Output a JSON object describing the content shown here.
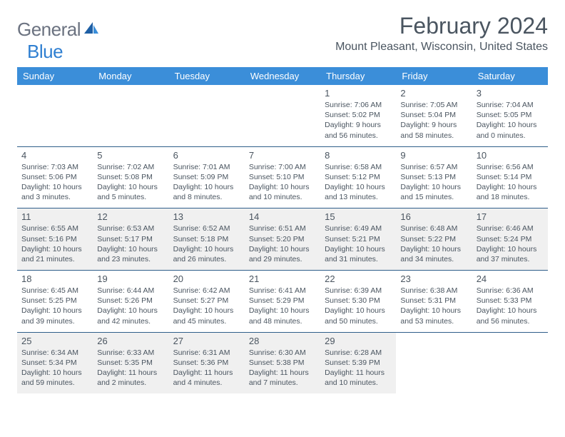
{
  "brand": {
    "general": "General",
    "blue": "Blue"
  },
  "title": "February 2024",
  "location": "Mount Pleasant, Wisconsin, United States",
  "colors": {
    "header_bg": "#3b8ed9",
    "header_text": "#ffffff",
    "border": "#2f5e8a",
    "text": "#4a5560",
    "shaded_bg": "#f0f0f0",
    "logo_gray": "#6b7280",
    "logo_blue": "#2f7fd1"
  },
  "day_headers": [
    "Sunday",
    "Monday",
    "Tuesday",
    "Wednesday",
    "Thursday",
    "Friday",
    "Saturday"
  ],
  "weeks": [
    {
      "shaded": false,
      "days": [
        null,
        null,
        null,
        null,
        {
          "n": "1",
          "sunrise": "7:06 AM",
          "sunset": "5:02 PM",
          "daylight": "9 hours and 56 minutes."
        },
        {
          "n": "2",
          "sunrise": "7:05 AM",
          "sunset": "5:04 PM",
          "daylight": "9 hours and 58 minutes."
        },
        {
          "n": "3",
          "sunrise": "7:04 AM",
          "sunset": "5:05 PM",
          "daylight": "10 hours and 0 minutes."
        }
      ]
    },
    {
      "shaded": false,
      "days": [
        {
          "n": "4",
          "sunrise": "7:03 AM",
          "sunset": "5:06 PM",
          "daylight": "10 hours and 3 minutes."
        },
        {
          "n": "5",
          "sunrise": "7:02 AM",
          "sunset": "5:08 PM",
          "daylight": "10 hours and 5 minutes."
        },
        {
          "n": "6",
          "sunrise": "7:01 AM",
          "sunset": "5:09 PM",
          "daylight": "10 hours and 8 minutes."
        },
        {
          "n": "7",
          "sunrise": "7:00 AM",
          "sunset": "5:10 PM",
          "daylight": "10 hours and 10 minutes."
        },
        {
          "n": "8",
          "sunrise": "6:58 AM",
          "sunset": "5:12 PM",
          "daylight": "10 hours and 13 minutes."
        },
        {
          "n": "9",
          "sunrise": "6:57 AM",
          "sunset": "5:13 PM",
          "daylight": "10 hours and 15 minutes."
        },
        {
          "n": "10",
          "sunrise": "6:56 AM",
          "sunset": "5:14 PM",
          "daylight": "10 hours and 18 minutes."
        }
      ]
    },
    {
      "shaded": true,
      "days": [
        {
          "n": "11",
          "sunrise": "6:55 AM",
          "sunset": "5:16 PM",
          "daylight": "10 hours and 21 minutes."
        },
        {
          "n": "12",
          "sunrise": "6:53 AM",
          "sunset": "5:17 PM",
          "daylight": "10 hours and 23 minutes."
        },
        {
          "n": "13",
          "sunrise": "6:52 AM",
          "sunset": "5:18 PM",
          "daylight": "10 hours and 26 minutes."
        },
        {
          "n": "14",
          "sunrise": "6:51 AM",
          "sunset": "5:20 PM",
          "daylight": "10 hours and 29 minutes."
        },
        {
          "n": "15",
          "sunrise": "6:49 AM",
          "sunset": "5:21 PM",
          "daylight": "10 hours and 31 minutes."
        },
        {
          "n": "16",
          "sunrise": "6:48 AM",
          "sunset": "5:22 PM",
          "daylight": "10 hours and 34 minutes."
        },
        {
          "n": "17",
          "sunrise": "6:46 AM",
          "sunset": "5:24 PM",
          "daylight": "10 hours and 37 minutes."
        }
      ]
    },
    {
      "shaded": false,
      "days": [
        {
          "n": "18",
          "sunrise": "6:45 AM",
          "sunset": "5:25 PM",
          "daylight": "10 hours and 39 minutes."
        },
        {
          "n": "19",
          "sunrise": "6:44 AM",
          "sunset": "5:26 PM",
          "daylight": "10 hours and 42 minutes."
        },
        {
          "n": "20",
          "sunrise": "6:42 AM",
          "sunset": "5:27 PM",
          "daylight": "10 hours and 45 minutes."
        },
        {
          "n": "21",
          "sunrise": "6:41 AM",
          "sunset": "5:29 PM",
          "daylight": "10 hours and 48 minutes."
        },
        {
          "n": "22",
          "sunrise": "6:39 AM",
          "sunset": "5:30 PM",
          "daylight": "10 hours and 50 minutes."
        },
        {
          "n": "23",
          "sunrise": "6:38 AM",
          "sunset": "5:31 PM",
          "daylight": "10 hours and 53 minutes."
        },
        {
          "n": "24",
          "sunrise": "6:36 AM",
          "sunset": "5:33 PM",
          "daylight": "10 hours and 56 minutes."
        }
      ]
    },
    {
      "shaded": true,
      "days": [
        {
          "n": "25",
          "sunrise": "6:34 AM",
          "sunset": "5:34 PM",
          "daylight": "10 hours and 59 minutes."
        },
        {
          "n": "26",
          "sunrise": "6:33 AM",
          "sunset": "5:35 PM",
          "daylight": "11 hours and 2 minutes."
        },
        {
          "n": "27",
          "sunrise": "6:31 AM",
          "sunset": "5:36 PM",
          "daylight": "11 hours and 4 minutes."
        },
        {
          "n": "28",
          "sunrise": "6:30 AM",
          "sunset": "5:38 PM",
          "daylight": "11 hours and 7 minutes."
        },
        {
          "n": "29",
          "sunrise": "6:28 AM",
          "sunset": "5:39 PM",
          "daylight": "11 hours and 10 minutes."
        },
        null,
        null
      ]
    }
  ],
  "labels": {
    "sunrise": "Sunrise:",
    "sunset": "Sunset:",
    "daylight": "Daylight:"
  }
}
